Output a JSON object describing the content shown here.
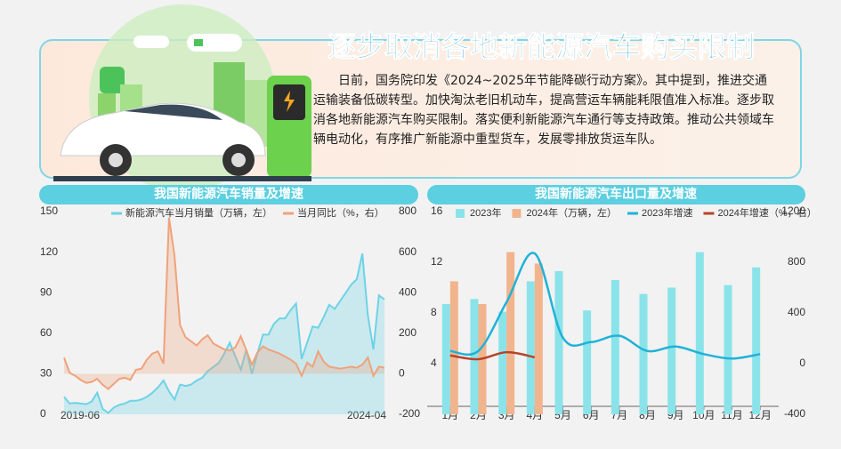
{
  "header": {
    "title": "逐步取消各地新能源汽车购买限制",
    "text": "日前，国务院印发《2024~2025年节能降碳行动方案》。其中提到，推进交通运输装备低碳转型。加快淘汰老旧机动车，提高营运车辆能耗限值准入标准。逐步取消各地新能源汽车购买限制。落实便利新能源汽车通行等支持政策。推动公共领域车辆电动化，有序推广新能源中重型货车，发展零排放货运车队。"
  },
  "chart_data": [
    {
      "type": "line",
      "title": "我国新能源汽车销量及增速",
      "categories": [
        "2019-06",
        null,
        null,
        null,
        null,
        null,
        null,
        null,
        null,
        null,
        null,
        null,
        null,
        null,
        null,
        null,
        null,
        null,
        null,
        null,
        null,
        null,
        null,
        null,
        null,
        null,
        null,
        null,
        null,
        null,
        null,
        null,
        null,
        null,
        null,
        null,
        null,
        null,
        null,
        null,
        null,
        null,
        null,
        null,
        null,
        null,
        null,
        null,
        null,
        null,
        null,
        null,
        null,
        null,
        null,
        null,
        null,
        null,
        "2024-04"
      ],
      "series": [
        {
          "name": "新能源汽车当月销量（万辆，左）",
          "color": "#6dd3e6",
          "axis": "y",
          "values": [
            13,
            8,
            8.5,
            8,
            7.5,
            9.5,
            16,
            4,
            1,
            5,
            7,
            8,
            10,
            10,
            11,
            13,
            16,
            20,
            25,
            17,
            11,
            22,
            21,
            22,
            25,
            27,
            32,
            35,
            38,
            45,
            53,
            43,
            33,
            48,
            30,
            45,
            59,
            59,
            67,
            71,
            71,
            77,
            82,
            41,
            53,
            65,
            64,
            72,
            81,
            78,
            84,
            90,
            96,
            100,
            119,
            73,
            48,
            88,
            85
          ]
        },
        {
          "name": "当月同比（%，右）",
          "color": "#f0a27a",
          "axis": "y2",
          "values": [
            80,
            5,
            -10,
            -30,
            -45,
            -40,
            -25,
            -55,
            -75,
            -50,
            -25,
            -20,
            -30,
            20,
            25,
            70,
            100,
            110,
            50,
            770,
            580,
            240,
            180,
            160,
            140,
            170,
            190,
            150,
            135,
            120,
            115,
            130,
            185,
            115,
            45,
            105,
            135,
            120,
            110,
            100,
            85,
            70,
            50,
            -10,
            55,
            35,
            110,
            60,
            35,
            30,
            25,
            30,
            35,
            30,
            45,
            80,
            -10,
            35,
            30
          ]
        }
      ],
      "ylim": [
        0,
        150
      ],
      "yticks": [
        0,
        30,
        60,
        90,
        120,
        150
      ],
      "y2lim": [
        -200,
        800
      ],
      "y2ticks": [
        -200,
        0,
        200,
        400,
        600,
        800
      ],
      "grid": false,
      "legend": "top"
    },
    {
      "type": "bar",
      "title": "我国新能源汽车出口量及增速",
      "categories": [
        "1月",
        "2月",
        "3月",
        "4月",
        "5月",
        "6月",
        "7月",
        "8月",
        "9月",
        "10月",
        "11月",
        "12月"
      ],
      "series": [
        {
          "name": "2023年",
          "color": "#8be3ea",
          "axis": "y",
          "type": "bar",
          "values": [
            8.7,
            9.1,
            8.1,
            10.5,
            11.3,
            8.2,
            10.6,
            9.5,
            10.0,
            12.8,
            10.2,
            11.6
          ]
        },
        {
          "name": "2024年（万辆，左）",
          "color": "#f2b48c",
          "axis": "y",
          "type": "bar",
          "values": [
            10.5,
            8.7,
            12.8,
            11.9,
            null,
            null,
            null,
            null,
            null,
            null,
            null,
            null
          ]
        },
        {
          "name": "2023年增速",
          "color": "#1fb2d8",
          "axis": "y2",
          "type": "line",
          "values": [
            100,
            100,
            485,
            870,
            205,
            170,
            220,
            100,
            135,
            75,
            40,
            75
          ]
        },
        {
          "name": "2024年增速（%，右）",
          "color": "#b5452a",
          "axis": "y2",
          "type": "line",
          "values": [
            65,
            35,
            90,
            50,
            null,
            null,
            null,
            null,
            null,
            null,
            null,
            null
          ]
        }
      ],
      "ylim": [
        0,
        16
      ],
      "yticks": [
        4,
        8,
        12,
        16
      ],
      "y2lim": [
        -400,
        1200
      ],
      "y2ticks": [
        -400,
        0,
        400,
        800,
        1200
      ],
      "grid": false,
      "legend": "top"
    }
  ]
}
